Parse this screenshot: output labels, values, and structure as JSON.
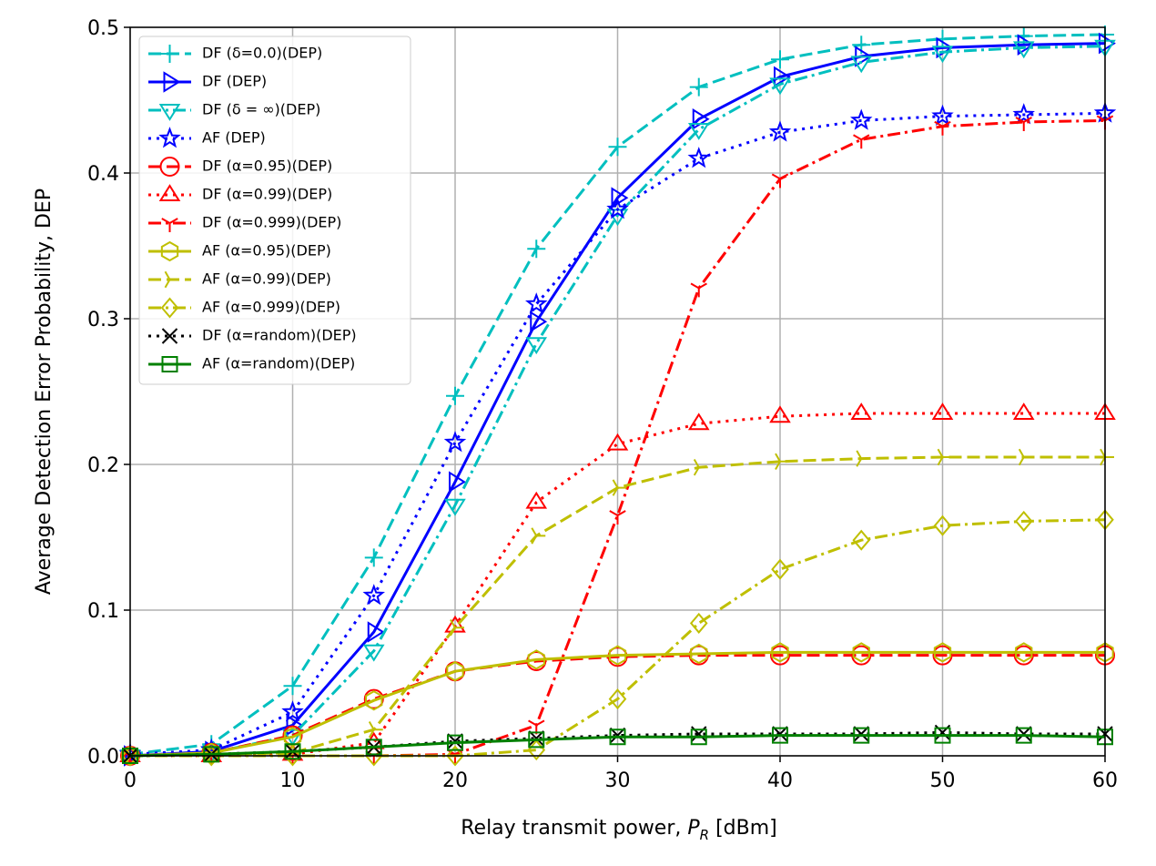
{
  "chart_data": {
    "type": "line",
    "xlabel": [
      "Relay transmit power, ",
      "P",
      "R",
      " [dBm]"
    ],
    "ylabel": "Average Detection Error Probability, DEP",
    "x": [
      0,
      5,
      10,
      15,
      20,
      25,
      30,
      35,
      40,
      45,
      50,
      55,
      60
    ],
    "xlim": [
      0,
      60
    ],
    "xticks": [
      0,
      10,
      20,
      30,
      40,
      50,
      60
    ],
    "ylim": [
      0,
      0.5
    ],
    "yticks": [
      {
        "value": 0,
        "label": "0.0"
      },
      0.1,
      0.2,
      0.3,
      0.4,
      0.5
    ],
    "grid": true,
    "legend": "upper left",
    "series": [
      {
        "name": "DF (δ=0.0)(DEP)",
        "color": "#00bfbf",
        "linestyle": "dashed",
        "marker": "+",
        "values": [
          0.001,
          0.008,
          0.048,
          0.136,
          0.247,
          0.348,
          0.418,
          0.459,
          0.478,
          0.488,
          0.492,
          0.494,
          0.495
        ]
      },
      {
        "name": "DF (DEP)",
        "color": "#0000ff",
        "linestyle": "solid",
        "marker": ">",
        "values": [
          0,
          0.003,
          0.021,
          0.085,
          0.188,
          0.298,
          0.383,
          0.437,
          0.466,
          0.48,
          0.486,
          0.488,
          0.489
        ]
      },
      {
        "name": "DF (δ = ∞)(DEP)",
        "color": "#00bfbf",
        "linestyle": "dashdot",
        "marker": "v",
        "values": [
          0,
          0.002,
          0.014,
          0.072,
          0.172,
          0.283,
          0.371,
          0.43,
          0.461,
          0.476,
          0.483,
          0.486,
          0.487
        ]
      },
      {
        "name": "AF (DEP)",
        "color": "#0000ff",
        "linestyle": "dotted",
        "marker": "*",
        "values": [
          0.001,
          0.004,
          0.03,
          0.11,
          0.215,
          0.31,
          0.375,
          0.41,
          0.428,
          0.436,
          0.439,
          0.44,
          0.441
        ]
      },
      {
        "name": "DF (α=0.95)(DEP)",
        "color": "#ff0000",
        "linestyle": "dashed",
        "marker": "o",
        "values": [
          0,
          0.002,
          0.014,
          0.039,
          0.058,
          0.065,
          0.068,
          0.069,
          0.069,
          0.069,
          0.069,
          0.069,
          0.069
        ]
      },
      {
        "name": "DF (α=0.99)(DEP)",
        "color": "#ff0000",
        "linestyle": "dotted",
        "marker": "^",
        "values": [
          0,
          0,
          0.001,
          0.009,
          0.089,
          0.174,
          0.214,
          0.228,
          0.233,
          0.235,
          0.235,
          0.235,
          0.235
        ]
      },
      {
        "name": "DF (α=0.999)(DEP)",
        "color": "#ff0000",
        "linestyle": "dashdot",
        "marker": "1",
        "values": [
          0,
          0,
          0,
          0,
          0.001,
          0.021,
          0.165,
          0.321,
          0.396,
          0.423,
          0.432,
          0.435,
          0.436
        ]
      },
      {
        "name": "AF (α=0.95)(DEP)",
        "color": "#bfbf00",
        "linestyle": "solid",
        "marker": "h",
        "values": [
          0,
          0.002,
          0.013,
          0.038,
          0.058,
          0.066,
          0.069,
          0.07,
          0.071,
          0.071,
          0.071,
          0.071,
          0.071
        ]
      },
      {
        "name": "AF (α=0.99)(DEP)",
        "color": "#bfbf00",
        "linestyle": "dashed",
        "marker": "4",
        "values": [
          0,
          0.001,
          0.002,
          0.018,
          0.088,
          0.151,
          0.184,
          0.198,
          0.202,
          0.204,
          0.205,
          0.205,
          0.205
        ]
      },
      {
        "name": "AF (α=0.999)(DEP)",
        "color": "#bfbf00",
        "linestyle": "dashdot",
        "marker": "D",
        "values": [
          0,
          0,
          0,
          0,
          0,
          0.004,
          0.039,
          0.091,
          0.128,
          0.148,
          0.158,
          0.161,
          0.162
        ]
      },
      {
        "name": "DF (α=random)(DEP)",
        "color": "#000000",
        "linestyle": "dotted",
        "marker": "x",
        "values": [
          0,
          0.001,
          0.003,
          0.006,
          0.01,
          0.012,
          0.014,
          0.015,
          0.015,
          0.015,
          0.016,
          0.015,
          0.015
        ]
      },
      {
        "name": "AF (α=random)(DEP)",
        "color": "#008000",
        "linestyle": "solid",
        "marker": "s",
        "values": [
          0,
          0.001,
          0.003,
          0.006,
          0.009,
          0.011,
          0.013,
          0.013,
          0.014,
          0.014,
          0.014,
          0.014,
          0.013
        ]
      }
    ]
  }
}
